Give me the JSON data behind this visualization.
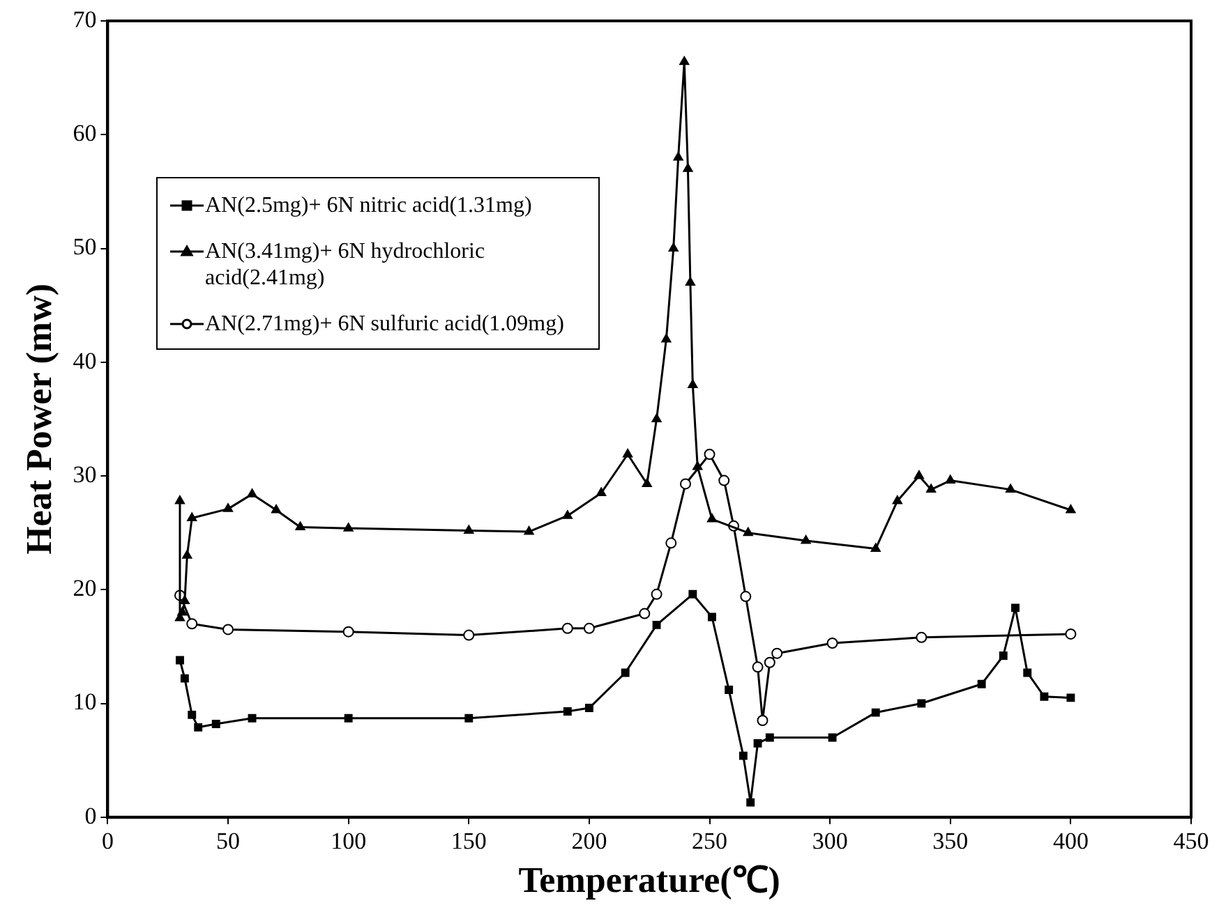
{
  "chart_data": {
    "type": "line",
    "xlabel": "Temperature(℃)",
    "ylabel": "Heat Power (mw)",
    "xlim": [
      0,
      450
    ],
    "xticks": [
      0,
      50,
      100,
      150,
      200,
      250,
      300,
      350,
      400,
      450
    ],
    "ylim": [
      0,
      70
    ],
    "yticks": [
      0,
      10,
      20,
      30,
      40,
      50,
      60,
      70
    ],
    "grid": false,
    "legend": "top left",
    "line_style": "solid",
    "series": [
      {
        "name": "AN(2.5mg)+ 6N nitric acid(1.31mg)",
        "color": "#000000",
        "marker": "square",
        "x": [
          30,
          32,
          35,
          37.6,
          45,
          60,
          100,
          150,
          191,
          200,
          215,
          228,
          243,
          251,
          258,
          264,
          267,
          270,
          275,
          301,
          319,
          338,
          363,
          372,
          377,
          382,
          389,
          400
        ],
        "values": [
          13.8,
          12.2,
          9,
          7.9,
          8.2,
          8.7,
          8.7,
          8.7,
          9.3,
          9.6,
          12.7,
          16.9,
          19.6,
          17.6,
          11.2,
          5.4,
          1.3,
          6.5,
          7,
          7,
          9.2,
          10,
          11.7,
          14.2,
          18.4,
          12.7,
          10.6,
          10.5
        ]
      },
      {
        "name": "AN(3.41mg)+ 6N hydrochloric acid(2.41mg)",
        "color": "#000000",
        "marker": "triangle",
        "x": [
          30,
          30,
          31,
          32,
          33,
          35,
          50,
          60,
          70,
          80,
          100,
          150,
          175,
          191,
          205,
          216,
          224,
          228,
          232,
          235,
          237,
          239.5,
          241,
          242,
          243,
          245,
          251,
          266,
          290,
          319,
          328,
          337,
          342,
          350,
          375,
          400
        ],
        "values": [
          27.8,
          17.5,
          18,
          19,
          23,
          26.3,
          27.1,
          28.4,
          27,
          25.5,
          25.4,
          25.2,
          25.1,
          26.5,
          28.5,
          31.9,
          29.3,
          35,
          42,
          50,
          58,
          66.4,
          57,
          47,
          38,
          30.8,
          26.2,
          25,
          24.3,
          23.6,
          27.8,
          30,
          28.8,
          29.6,
          28.8,
          27
        ]
      },
      {
        "name": "AN(2.71mg)+ 6N sulfuric acid(1.09mg)",
        "color": "#000000",
        "marker": "circle",
        "x": [
          30,
          35,
          50,
          100,
          150,
          191,
          200,
          223,
          228,
          234,
          240,
          250,
          256,
          260,
          265,
          270,
          272,
          275,
          278,
          301,
          338,
          400
        ],
        "values": [
          19.5,
          17,
          16.5,
          16.3,
          16,
          16.6,
          16.6,
          17.9,
          19.6,
          24.1,
          29.3,
          31.9,
          29.6,
          25.6,
          19.4,
          13.2,
          8.5,
          13.6,
          14.4,
          15.3,
          15.8,
          16.1
        ]
      }
    ]
  }
}
